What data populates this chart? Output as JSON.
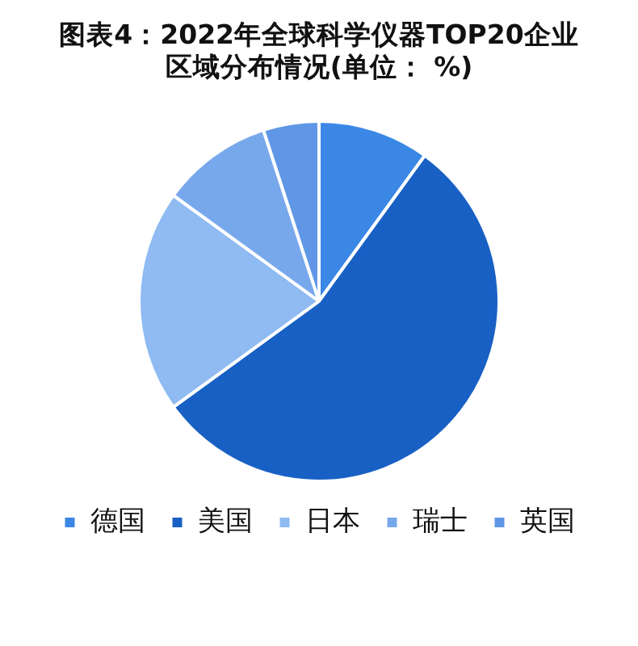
{
  "chart_data": {
    "type": "pie",
    "title": "图表4：2022年全球科学仪器TOP20企业区域分布情况(单位： %)",
    "categories": [
      "德国",
      "美国",
      "日本",
      "瑞士",
      "英国"
    ],
    "values": [
      10,
      55,
      20,
      10,
      5
    ],
    "colors": [
      "#3a87e6",
      "#1860c4",
      "#8fbaf2",
      "#78a8ec",
      "#5f97e6"
    ],
    "legend": "bottom"
  }
}
